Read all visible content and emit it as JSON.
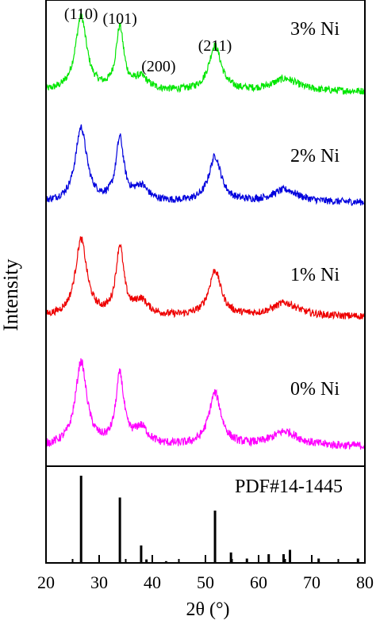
{
  "chart_data": {
    "type": "line",
    "xlabel": "2θ (°)",
    "ylabel": "Intensity",
    "xlim": [
      20,
      80
    ],
    "xticks": [
      20,
      30,
      40,
      50,
      60,
      70,
      80
    ],
    "grid": false,
    "peak_labels": [
      {
        "text": "(110)",
        "x": 26.6
      },
      {
        "text": "(101)",
        "x": 33.9
      },
      {
        "text": "(200)",
        "x": 37.9
      },
      {
        "text": "(211)",
        "x": 51.8
      }
    ],
    "series": [
      {
        "name": "3% Ni",
        "color": "#00e600",
        "peaks": [
          [
            26.6,
            0.72
          ],
          [
            33.9,
            0.6
          ],
          [
            37.9,
            0.12
          ],
          [
            51.8,
            0.44
          ],
          [
            65.0,
            0.12
          ]
        ],
        "baseline": 0.08
      },
      {
        "name": "2% Ni",
        "color": "#0000dd",
        "peaks": [
          [
            26.6,
            0.72
          ],
          [
            33.9,
            0.6
          ],
          [
            37.9,
            0.14
          ],
          [
            51.8,
            0.44
          ],
          [
            65.0,
            0.12
          ]
        ],
        "baseline": 0.08
      },
      {
        "name": "1% Ni",
        "color": "#ee0000",
        "peaks": [
          [
            26.6,
            0.74
          ],
          [
            33.9,
            0.66
          ],
          [
            37.9,
            0.14
          ],
          [
            51.8,
            0.44
          ],
          [
            65.0,
            0.13
          ]
        ],
        "baseline": 0.08
      },
      {
        "name": "0% Ni",
        "color": "#ff00ff",
        "peaks": [
          [
            26.6,
            0.7
          ],
          [
            33.9,
            0.58
          ],
          [
            37.9,
            0.14
          ],
          [
            51.8,
            0.44
          ],
          [
            65.0,
            0.12
          ]
        ],
        "baseline": 0.08
      }
    ],
    "reference": {
      "name": "PDF#14-1445",
      "lines": [
        {
          "x": 26.6,
          "intensity": 1.0
        },
        {
          "x": 33.9,
          "intensity": 0.75
        },
        {
          "x": 37.9,
          "intensity": 0.2
        },
        {
          "x": 38.9,
          "intensity": 0.04
        },
        {
          "x": 42.6,
          "intensity": 0.02
        },
        {
          "x": 51.8,
          "intensity": 0.6
        },
        {
          "x": 54.8,
          "intensity": 0.12
        },
        {
          "x": 57.8,
          "intensity": 0.05
        },
        {
          "x": 61.9,
          "intensity": 0.1
        },
        {
          "x": 64.7,
          "intensity": 0.1
        },
        {
          "x": 65.9,
          "intensity": 0.15
        },
        {
          "x": 71.3,
          "intensity": 0.05
        },
        {
          "x": 78.7,
          "intensity": 0.05
        }
      ]
    }
  }
}
